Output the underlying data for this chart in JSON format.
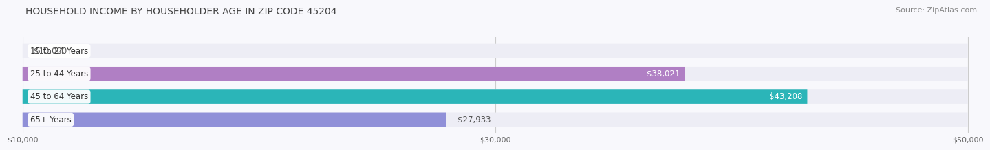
{
  "title": "HOUSEHOLD INCOME BY HOUSEHOLDER AGE IN ZIP CODE 45204",
  "source": "Source: ZipAtlas.com",
  "categories": [
    "15 to 24 Years",
    "25 to 44 Years",
    "45 to 64 Years",
    "65+ Years"
  ],
  "values": [
    10000,
    38021,
    43208,
    27933
  ],
  "bar_colors": [
    "#9eb8e8",
    "#b07fc4",
    "#2bb5b8",
    "#9090d8"
  ],
  "bar_bg_color": "#ededf5",
  "background_color": "#f8f8fc",
  "xmin": 10000,
  "xmax": 50000,
  "xticks": [
    10000,
    30000,
    50000
  ],
  "xtick_labels": [
    "$10,000",
    "$30,000",
    "$50,000"
  ],
  "value_labels": [
    "$10,000",
    "$38,021",
    "$43,208",
    "$27,933"
  ],
  "inside_bar": [
    false,
    true,
    true,
    false
  ],
  "title_fontsize": 10,
  "source_fontsize": 8,
  "label_fontsize": 8.5,
  "tick_fontsize": 8
}
